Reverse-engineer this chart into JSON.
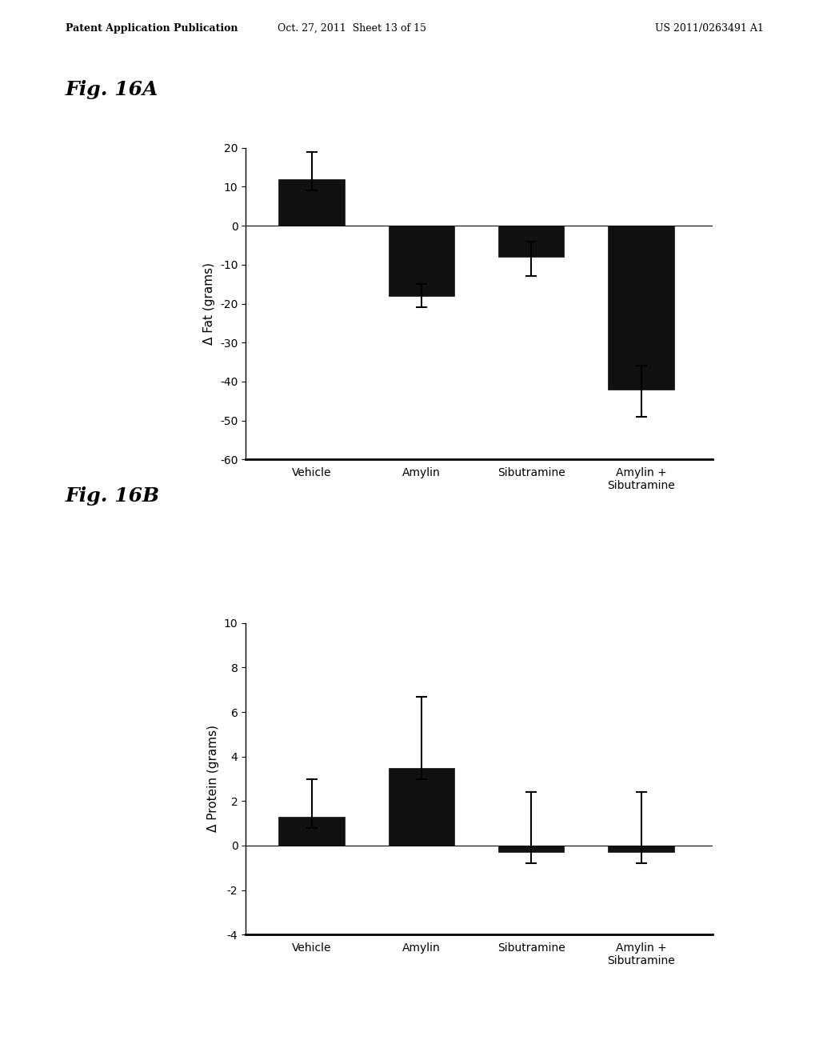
{
  "fig16A": {
    "title": "Fig. 16A",
    "ylabel": "Δ Fat (grams)",
    "categories": [
      "Vehicle",
      "Amylin",
      "Sibutramine",
      "Amylin +\nSibutramine"
    ],
    "values": [
      12,
      -18,
      -8,
      -42
    ],
    "errors_upper": [
      7,
      3,
      4,
      6
    ],
    "errors_lower": [
      3,
      3,
      5,
      7
    ],
    "ylim": [
      -60,
      20
    ],
    "yticks": [
      -60,
      -50,
      -40,
      -30,
      -20,
      -10,
      0,
      10,
      20
    ],
    "bar_color": "#111111",
    "bar_width": 0.6
  },
  "fig16B": {
    "title": "Fig. 16B",
    "ylabel": "Δ Protein (grams)",
    "categories": [
      "Vehicle",
      "Amylin",
      "Sibutramine",
      "Amylin +\nSibutramine"
    ],
    "values": [
      1.3,
      3.5,
      -0.3,
      -0.3
    ],
    "errors_upper": [
      1.7,
      3.2,
      2.7,
      2.7
    ],
    "errors_lower": [
      0.5,
      0.5,
      0.5,
      0.5
    ],
    "ylim": [
      -4,
      10
    ],
    "yticks": [
      -4,
      -2,
      0,
      2,
      4,
      6,
      8,
      10
    ],
    "bar_color": "#111111",
    "bar_width": 0.6
  },
  "header_left": "Patent Application Publication",
  "header_mid": "Oct. 27, 2011  Sheet 13 of 15",
  "header_right": "US 2011/0263491 A1",
  "background_color": "#ffffff",
  "text_color": "#000000",
  "fig_label_fontsize": 18,
  "axis_label_fontsize": 11,
  "tick_fontsize": 10,
  "category_fontsize": 11
}
